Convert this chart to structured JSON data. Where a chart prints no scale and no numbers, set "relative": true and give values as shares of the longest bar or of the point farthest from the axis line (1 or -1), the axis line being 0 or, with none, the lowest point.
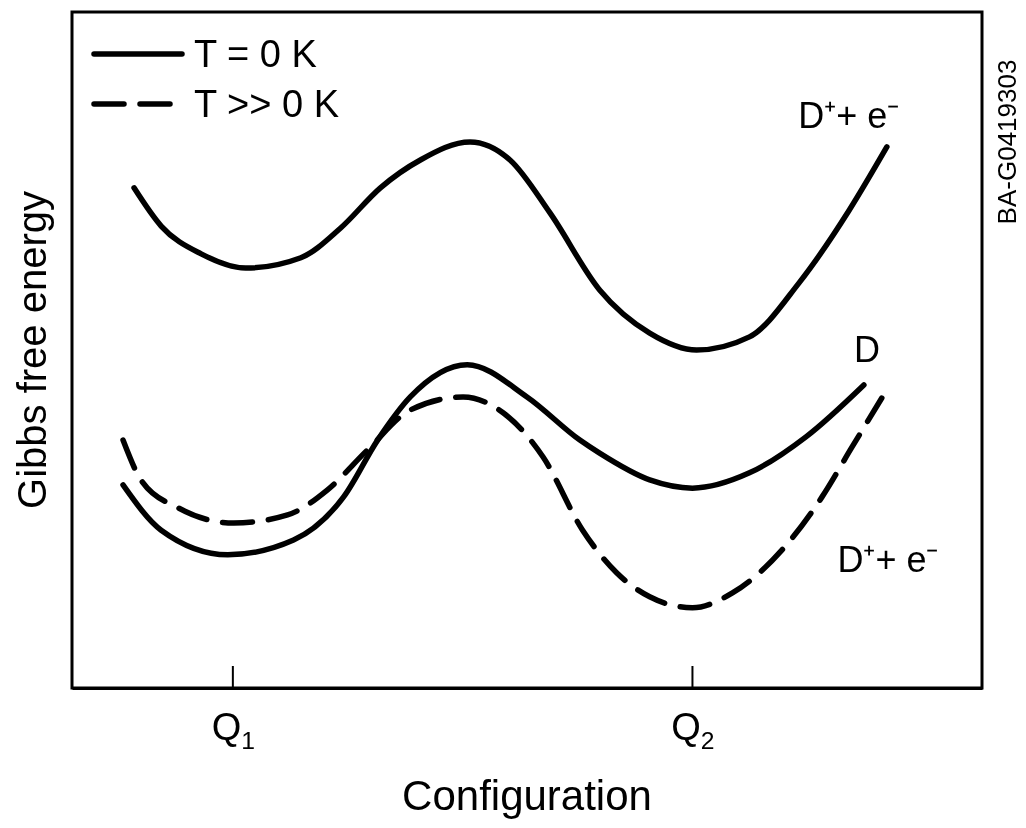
{
  "chart_data": {
    "type": "line",
    "relative": true,
    "xlabel": "Configuration",
    "ylabel": "Gibbs free energy",
    "xlim": [
      0.65,
      2.63
    ],
    "xticks": [
      {
        "value": 1,
        "label": "Q$_{1}$"
      },
      {
        "value": 2,
        "label": "Q$_{2}$"
      }
    ],
    "legend": "top left",
    "grid": false,
    "marker": "none",
    "annotations": [
      {
        "text": "D⁺+ e⁻",
        "x": 2.423,
        "y": 0.991
      },
      {
        "text": "D",
        "x": 2.373,
        "y": 0.555
      },
      {
        "text": "D⁺+ e⁻",
        "x": 2.347,
        "y": 0.441
      },
      "BA-G0419303"
    ],
    "series": [
      {
        "name": "T = 0 K",
        "color": "#000000",
        "line_style": "solid",
        "x": [
          0.785,
          0.844,
          0.931,
          1.028,
          1.148,
          1.234,
          1.321,
          1.408,
          1.516,
          1.603,
          1.69,
          1.798,
          1.907,
          2.009,
          2.124,
          2.232,
          2.341,
          2.423
        ],
        "values": [
          0.916,
          0.846,
          0.795,
          0.769,
          0.788,
          0.842,
          0.916,
          0.967,
          1.0,
          0.967,
          0.87,
          0.729,
          0.65,
          0.619,
          0.643,
          0.742,
          0.875,
          0.991
        ]
      },
      {
        "color": "#000000",
        "line_style": "solid",
        "x": [
          0.761,
          0.844,
          0.989,
          1.132,
          1.241,
          1.315,
          1.386,
          1.51,
          1.64,
          1.755,
          1.798,
          1.907,
          2.0,
          2.124,
          2.247,
          2.373
        ],
        "values": [
          0.372,
          0.289,
          0.244,
          0.271,
          0.35,
          0.454,
          0.533,
          0.592,
          0.533,
          0.454,
          0.43,
          0.381,
          0.366,
          0.394,
          0.46,
          0.555
        ]
      },
      {
        "name": "T >> 0 K",
        "color": "#000000",
        "line_style": "dashed",
        "x": [
          0.761,
          0.8,
          0.881,
          1.002,
          1.119,
          1.206,
          1.293,
          1.386,
          1.501,
          1.588,
          1.675,
          1.761,
          1.835,
          1.907,
          2.0,
          2.087,
          2.195,
          2.282,
          2.347,
          2.412
        ],
        "values": [
          0.454,
          0.381,
          0.33,
          0.302,
          0.317,
          0.363,
          0.436,
          0.509,
          0.533,
          0.504,
          0.423,
          0.289,
          0.211,
          0.167,
          0.147,
          0.174,
          0.253,
          0.35,
          0.441,
          0.531
        ]
      }
    ]
  }
}
